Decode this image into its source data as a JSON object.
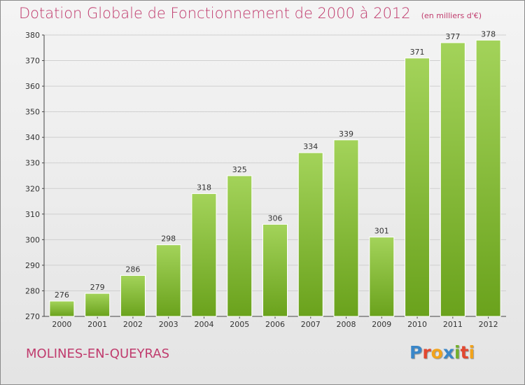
{
  "header": {
    "title": "Dotation Globale de Fonctionnement de 2000 à 2012",
    "unit": "(en milliers d'€)"
  },
  "footer": {
    "commune": "MOLINES-EN-QUEYRAS",
    "logo_letters": [
      {
        "ch": "P",
        "color": "#3a86c8"
      },
      {
        "ch": "r",
        "color": "#e2472f"
      },
      {
        "ch": "o",
        "color": "#f2a31b"
      },
      {
        "ch": "x",
        "color": "#3a86c8"
      },
      {
        "ch": "i",
        "color": "#72b02c"
      },
      {
        "ch": "t",
        "color": "#e2472f"
      },
      {
        "ch": "i",
        "color": "#f2a31b"
      }
    ]
  },
  "chart_data": {
    "type": "bar",
    "title": "Dotation Globale de Fonctionnement de 2000 à 2012",
    "unit": "(en milliers d'€)",
    "categories": [
      "2000",
      "2001",
      "2002",
      "2003",
      "2004",
      "2005",
      "2006",
      "2007",
      "2008",
      "2009",
      "2010",
      "2011",
      "2012"
    ],
    "values": [
      276,
      279,
      286,
      298,
      318,
      325,
      306,
      334,
      339,
      301,
      371,
      377,
      378
    ],
    "ylim": [
      270,
      380
    ],
    "yticks": [
      270,
      280,
      290,
      300,
      310,
      320,
      330,
      340,
      350,
      360,
      370,
      380
    ],
    "grid": true,
    "bar_color_top": "#a3d35a",
    "bar_color_bottom": "#6aa21c"
  }
}
